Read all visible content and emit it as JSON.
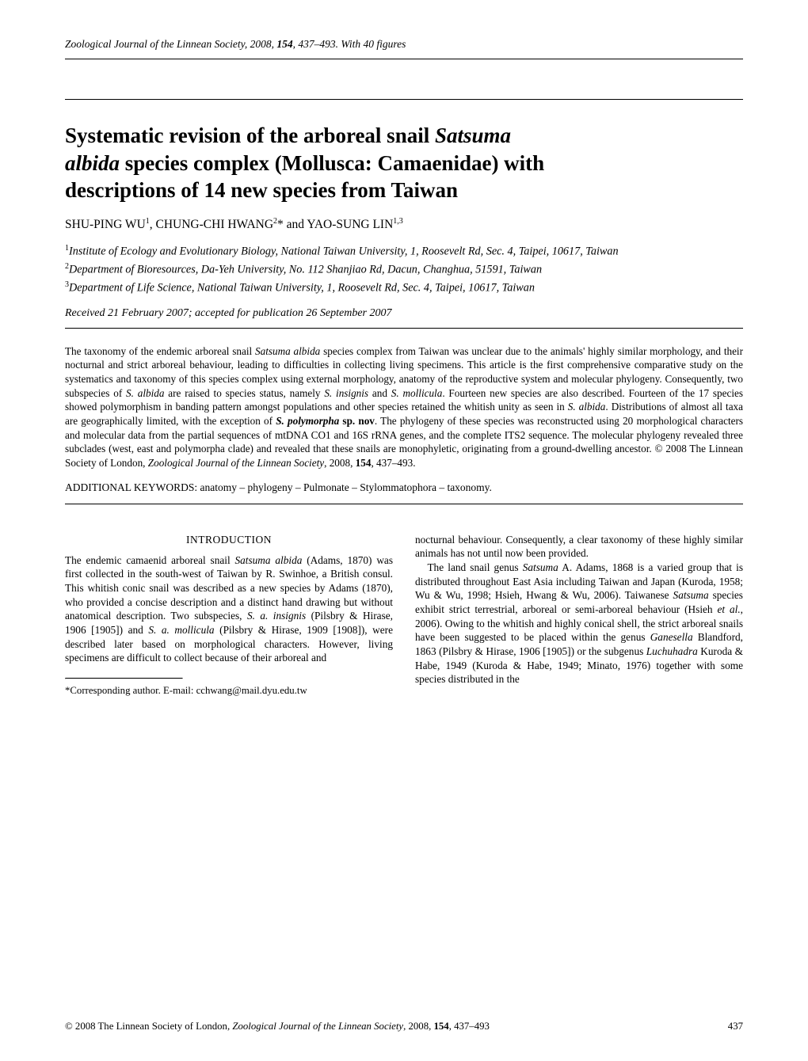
{
  "colors": {
    "text": "#000000",
    "background": "#ffffff",
    "rule": "#000000"
  },
  "fonts": {
    "body_family": "Century Schoolbook",
    "title_pt": 27,
    "body_pt": 13.3,
    "abstract_pt": 13.2,
    "running_pt": 13.5
  },
  "running_head": {
    "journal": "Zoological Journal of the Linnean Society",
    "year": "2008",
    "volume": "154",
    "pages": "437–493",
    "figures": "With 40 figures"
  },
  "title": {
    "line1_pre": "Systematic revision of the arboreal snail ",
    "line1_genus": "Satsuma",
    "line2_species": "albida",
    "line2_post": " species complex (Mollusca: Camaenidae) with",
    "line3": "descriptions of 14 new species from Taiwan"
  },
  "authors": {
    "a1": "SHU-PING WU",
    "a1_sup": "1",
    "a2": "CHUNG-CHI HWANG",
    "a2_sup": "2",
    "a2_mark": "*",
    "a3": "YAO-SUNG LIN",
    "a3_sup": "1,3"
  },
  "affiliations": {
    "af1_sup": "1",
    "af1": "Institute of Ecology and Evolutionary Biology, National Taiwan University, 1, Roosevelt Rd, Sec. 4, Taipei, 10617, Taiwan",
    "af2_sup": "2",
    "af2": "Department of Bioresources, Da-Yeh University, No. 112 Shanjiao Rd, Dacun, Changhua, 51591, Taiwan",
    "af3_sup": "3",
    "af3": "Department of Life Science, National Taiwan University, 1, Roosevelt Rd, Sec. 4, Taipei, 10617, Taiwan"
  },
  "received": "Received 21 February 2007; accepted for publication 26 September 2007",
  "abstract": {
    "seg1": "The taxonomy of the endemic arboreal snail ",
    "sp1": "Satsuma albida",
    "seg2": " species complex from Taiwan was unclear due to the animals' highly similar morphology, and their nocturnal and strict arboreal behaviour, leading to difficulties in collecting living specimens. This article is the first comprehensive comparative study on the systematics and taxonomy of this species complex using external morphology, anatomy of the reproductive system and molecular phylogeny. Consequently, two subspecies of ",
    "sp2": "S. albida",
    "seg3": " are raised to species status, namely ",
    "sp3": "S. insignis",
    "seg4": " and ",
    "sp4": "S. mollicula",
    "seg5": ". Fourteen new species are also described. Fourteen of the 17 species showed polymorphism in banding pattern amongst populations and other species retained the whitish unity as seen in ",
    "sp5": "S. albida",
    "seg6": ". Distributions of almost all taxa are geographically limited, with the exception of ",
    "sp6": "S. polymorpha",
    "spnov": " sp. nov",
    "seg7": ". The phylogeny of these species was reconstructed using 20 morphological characters and molecular data from the partial sequences of mtDNA CO1 and 16S rRNA genes, and the complete ITS2 sequence. The molecular phylogeny revealed three subclades (west, east and polymorpha clade) and revealed that these snails are monophyletic, originating from a ground-dwelling ancestor.  © 2008 The Linnean Society of London, ",
    "jname": "Zoological Journal of the Linnean Society",
    "seg8": ", 2008, ",
    "vol": "154",
    "seg9": ", 437–493."
  },
  "keywords": "ADDITIONAL KEYWORDS: anatomy – phylogeny – Pulmonate – Stylommatophora – taxonomy.",
  "intro_heading": "INTRODUCTION",
  "col_left": {
    "p1a": "The endemic camaenid arboreal snail ",
    "sp1": "Satsuma albida",
    "p1b": " (Adams, 1870) was first collected in the south-west of Taiwan by R. Swinhoe, a British consul. This whitish conic snail was described as a new species by Adams (1870), who provided a concise description and a distinct hand drawing but without anatomical description. Two subspecies, ",
    "sp2": "S. a. insignis",
    "p1c": " (Pilsbry & Hirase, 1906 [1905]) and ",
    "sp3": "S. a. mollicula",
    "p1d": " (Pilsbry & Hirase, 1909 [1908]), were described later based on morphological characters. However, living specimens are difficult to collect because of their arboreal and",
    "corresp": "*Corresponding author. E-mail: cchwang@mail.dyu.edu.tw"
  },
  "col_right": {
    "p1": "nocturnal behaviour. Consequently, a clear taxonomy of these highly similar animals has not until now been provided.",
    "p2a": "The land snail genus ",
    "sp1": "Satsuma",
    "p2b": " A. Adams, 1868 is a varied group that is distributed throughout East Asia including Taiwan and Japan (Kuroda, 1958; Wu & Wu, 1998; Hsieh, Hwang & Wu, 2006). Taiwanese ",
    "sp2": "Satsuma",
    "p2c": " species exhibit strict terrestrial, arboreal or semi-arboreal behaviour (Hsieh ",
    "etal": "et al.",
    "p2d": ", 2006). Owing to the whitish and highly conical shell, the strict arboreal snails have been suggested to be placed within the genus ",
    "sp3": "Ganesella",
    "p2e": " Blandford, 1863 (Pilsbry & Hirase, 1906 [1905]) or the subgenus ",
    "sp4": "Luchuhadra",
    "p2f": " Kuroda & Habe, 1949 (Kuroda & Habe, 1949; Minato, 1976) together with some species distributed in the"
  },
  "footer": {
    "copyright": "© 2008 The Linnean Society of London, ",
    "jname": "Zoological Journal of the Linnean Society",
    "tail": ", 2008, ",
    "vol": "154",
    "pages": ", 437–493",
    "pagenum": "437"
  }
}
